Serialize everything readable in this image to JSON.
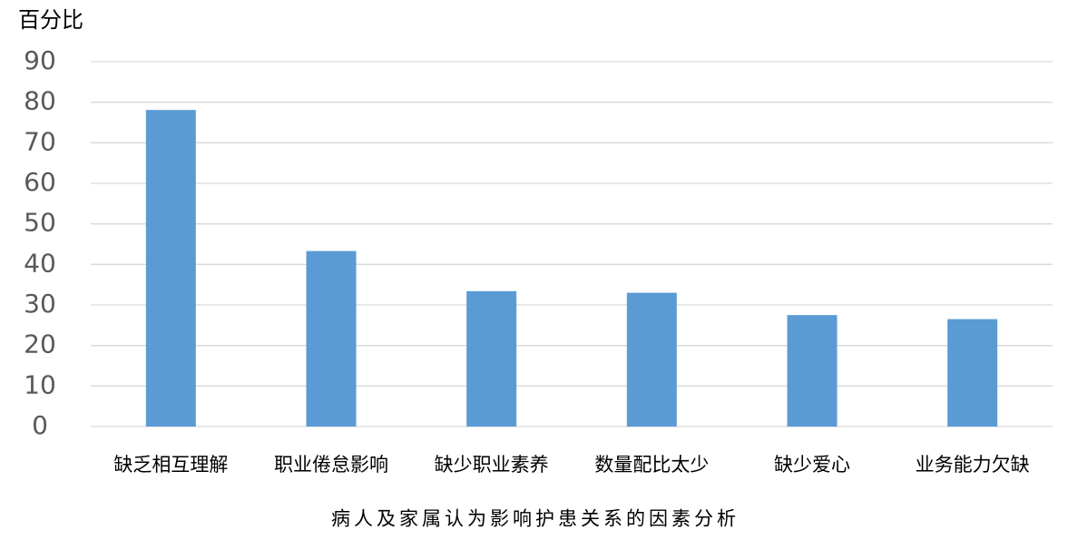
{
  "chart_data": {
    "type": "bar",
    "title": "病人及家属认为影响护患关系的因素分析",
    "y_label": "百分比",
    "categories": [
      "缺乏相互理解",
      "职业倦怠影响",
      "缺少职业素养",
      "数量配比太少",
      "缺少爱心",
      "业务能力欠缺"
    ],
    "values": [
      78.1,
      43.3,
      33.4,
      33.0,
      27.5,
      26.5
    ],
    "color": "#5b9bd5",
    "ylim": [
      0,
      90
    ],
    "yticks": [
      0,
      10,
      20,
      30,
      40,
      50,
      60,
      70,
      80,
      90
    ],
    "grid": true
  }
}
